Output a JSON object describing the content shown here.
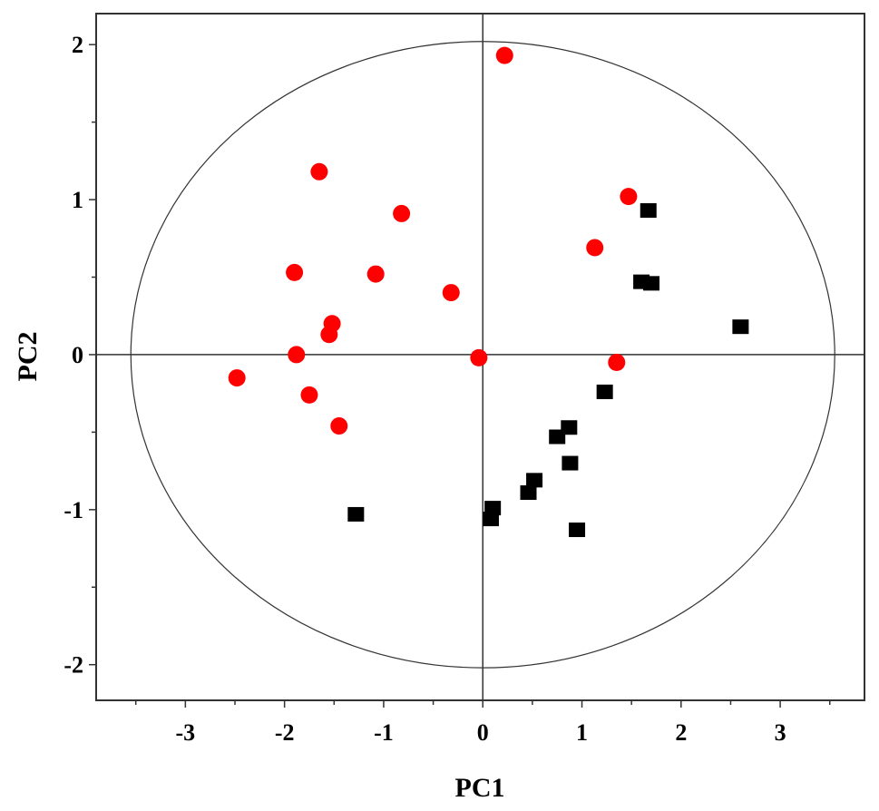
{
  "chart_data": {
    "type": "scatter",
    "title": "",
    "xlabel": "PC1",
    "ylabel": "PC2",
    "xlim": [
      -3.9,
      3.85
    ],
    "ylim": [
      -2.23,
      2.2
    ],
    "xticks": [
      -3,
      -2,
      -1,
      0,
      1,
      2,
      3
    ],
    "yticks": [
      -2,
      -1,
      0,
      1,
      2
    ],
    "xtick_labels": [
      "-3",
      "-2",
      "-1",
      "0",
      "1",
      "2",
      "3"
    ],
    "ytick_labels": [
      "-2",
      "-1",
      "0",
      "1",
      "2"
    ],
    "reference_lines": {
      "x": 0,
      "y": 0
    },
    "ellipse": {
      "cx": 0,
      "cy": 0,
      "rx": 3.55,
      "ry": 2.02
    },
    "grid": false,
    "legend": "none",
    "series": [
      {
        "marker": "circle",
        "color": "#ff0000",
        "points": [
          [
            0.22,
            1.93
          ],
          [
            -1.65,
            1.18
          ],
          [
            -0.82,
            0.91
          ],
          [
            -1.9,
            0.53
          ],
          [
            -1.08,
            0.52
          ],
          [
            -0.32,
            0.4
          ],
          [
            -1.52,
            0.2
          ],
          [
            -1.55,
            0.13
          ],
          [
            -1.88,
            0.0
          ],
          [
            -0.04,
            -0.02
          ],
          [
            -2.48,
            -0.15
          ],
          [
            -1.75,
            -0.26
          ],
          [
            -1.45,
            -0.46
          ],
          [
            1.47,
            1.02
          ],
          [
            1.13,
            0.69
          ],
          [
            1.35,
            -0.05
          ]
        ]
      },
      {
        "marker": "square",
        "color": "#000000",
        "points": [
          [
            1.67,
            0.93
          ],
          [
            1.6,
            0.47
          ],
          [
            1.7,
            0.46
          ],
          [
            2.6,
            0.18
          ],
          [
            1.23,
            -0.24
          ],
          [
            0.87,
            -0.47
          ],
          [
            0.75,
            -0.53
          ],
          [
            0.88,
            -0.7
          ],
          [
            0.52,
            -0.81
          ],
          [
            0.46,
            -0.89
          ],
          [
            0.1,
            -0.99
          ],
          [
            0.08,
            -1.06
          ],
          [
            0.95,
            -1.13
          ],
          [
            -1.28,
            -1.03
          ]
        ]
      }
    ]
  }
}
